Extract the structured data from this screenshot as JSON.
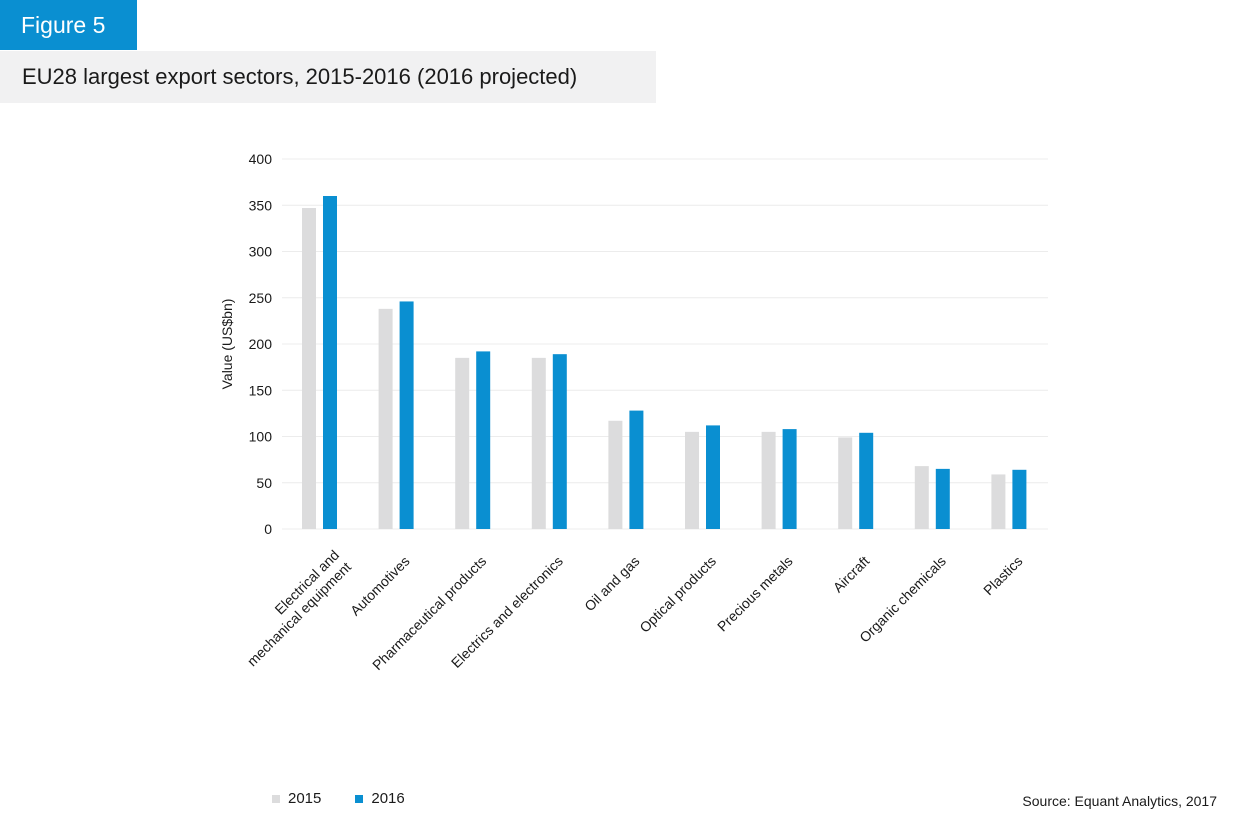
{
  "header": {
    "figure_label": "Figure 5",
    "title": "EU28 largest export sectors, 2015-2016 (2016 projected)"
  },
  "source": "Source: Equant Analytics, 2017",
  "colors": {
    "badge": "#0a8fd1",
    "series_2015": "#dcdcdd",
    "series_2016": "#0a8fd1",
    "gridline": "#ececec",
    "title_background": "#f1f1f2"
  },
  "chart_data": {
    "type": "bar",
    "title": "EU28 largest export sectors, 2015-2016 (2016 projected)",
    "xlabel": "",
    "ylabel": "Value (US$bn)",
    "ylim": [
      0,
      400
    ],
    "yticks": [
      "0",
      "50",
      "100",
      "150",
      "200",
      "250",
      "300",
      "350",
      "400"
    ],
    "grid": true,
    "legend_position": "bottom-left",
    "categories": [
      [
        "Electrical and",
        "mechanical equipment"
      ],
      [
        "Automotives"
      ],
      [
        "Pharmaceutical products"
      ],
      [
        "Electrics and electronics"
      ],
      [
        "Oil and gas"
      ],
      [
        "Optical products"
      ],
      [
        "Precious metals"
      ],
      [
        "Aircraft"
      ],
      [
        "Organic chemicals"
      ],
      [
        "Plastics"
      ]
    ],
    "series": [
      {
        "name": "2015",
        "values": [
          347,
          238,
          185,
          185,
          117,
          105,
          105,
          99,
          68,
          59
        ]
      },
      {
        "name": "2016",
        "values": [
          360,
          246,
          192,
          189,
          128,
          112,
          108,
          104,
          65,
          64
        ]
      }
    ]
  }
}
